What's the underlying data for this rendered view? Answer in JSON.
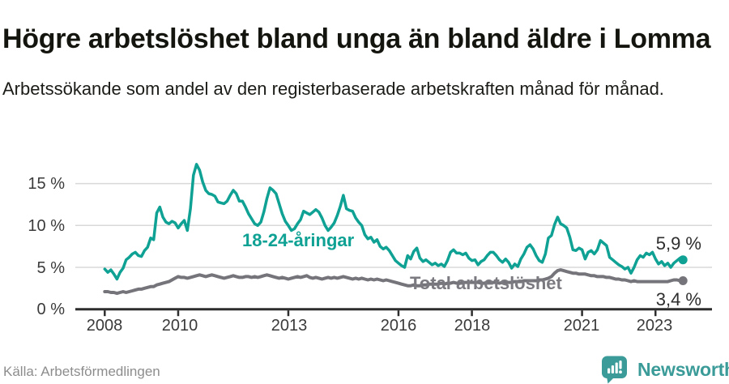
{
  "header": {
    "title": "Högre arbetslöshet bland unga än bland äldre i Lomma",
    "subtitle": "Arbetssökande som andel av den registerbaserade arbetskraften månad för månad."
  },
  "footer": {
    "source": "Källa: Arbetsförmedlingen",
    "brand": "Newsworthy",
    "brand_icon": "newsworthy-speech-bubble-bar-chart-icon"
  },
  "colors": {
    "youth": "#0fa294",
    "total": "#75747a",
    "axis": "#2d2d2d",
    "grid": "#d8d8d8",
    "brand": "#3a9b98",
    "tick_text": "#3a3a3a",
    "value_text": "#2e2e2e"
  },
  "chart_data": {
    "type": "line",
    "title": "Högre arbetslöshet bland unga än bland äldre i Lomma",
    "subtitle": "Arbetssökande som andel av den registerbaserade arbetskraften månad för månad.",
    "xlabel": "",
    "ylabel": "",
    "x_unit": "year+month (monthly data, Jan 2008 – Oct 2023)",
    "y_unit": "percent",
    "x_start": 2008.0,
    "x_step_months": 1,
    "xlim": [
      2007.2,
      2024.55
    ],
    "ylim": [
      0,
      18.5
    ],
    "grid": "horizontal",
    "legend_position": "inline-labels",
    "x_ticks": [
      2008,
      2010,
      2013,
      2016,
      2018,
      2021,
      2023
    ],
    "x_tick_labels": [
      "2008",
      "2010",
      "2013",
      "2016",
      "2018",
      "2021",
      "2023"
    ],
    "y_ticks": [
      0,
      5,
      10,
      15
    ],
    "y_tick_labels": [
      "0 %",
      "5 %",
      "10 %",
      "15 %"
    ],
    "series": [
      {
        "name": "18-24-åringar",
        "color": "#0fa294",
        "stroke_width": 3.5,
        "end_label": "5,9 %",
        "end_value": 5.9,
        "values": [
          4.8,
          4.4,
          4.7,
          4.2,
          3.6,
          4.4,
          4.9,
          5.9,
          6.2,
          6.6,
          6.8,
          6.4,
          6.3,
          7.0,
          7.4,
          8.5,
          8.3,
          11.5,
          12.2,
          11.0,
          10.4,
          10.2,
          10.5,
          10.3,
          9.7,
          10.2,
          10.6,
          9.4,
          12.0,
          16.0,
          17.3,
          16.6,
          15.2,
          14.2,
          13.8,
          13.7,
          13.5,
          12.8,
          12.7,
          12.6,
          12.9,
          13.6,
          14.2,
          13.8,
          12.9,
          12.9,
          12.2,
          11.4,
          10.8,
          10.2,
          10.0,
          10.4,
          11.6,
          13.2,
          14.5,
          14.2,
          13.8,
          12.6,
          11.4,
          10.5,
          10.0,
          9.4,
          9.6,
          10.2,
          10.7,
          11.7,
          11.5,
          11.3,
          11.6,
          11.9,
          11.6,
          10.9,
          10.0,
          9.4,
          9.8,
          10.3,
          11.2,
          12.3,
          13.6,
          12.0,
          11.8,
          11.7,
          10.9,
          10.4,
          10.0,
          8.9,
          8.4,
          8.6,
          8.0,
          8.3,
          7.5,
          7.2,
          7.4,
          7.0,
          6.4,
          5.8,
          5.5,
          5.2,
          5.0,
          6.4,
          6.0,
          6.9,
          7.3,
          6.1,
          5.7,
          5.9,
          5.6,
          5.3,
          5.5,
          5.2,
          5.4,
          5.1,
          5.8,
          6.8,
          7.1,
          6.7,
          6.7,
          6.5,
          6.7,
          6.1,
          5.8,
          5.9,
          5.3,
          5.7,
          5.9,
          6.4,
          6.8,
          6.8,
          6.4,
          5.9,
          5.6,
          6.0,
          5.6,
          4.9,
          5.4,
          5.1,
          6.0,
          6.6,
          7.4,
          7.7,
          7.2,
          6.4,
          5.8,
          5.6,
          6.6,
          8.5,
          8.8,
          10.1,
          11.0,
          10.2,
          10.0,
          9.7,
          8.6,
          7.1,
          7.0,
          7.3,
          7.1,
          6.0,
          6.8,
          7.0,
          6.6,
          7.1,
          8.2,
          7.9,
          7.6,
          6.2,
          5.9,
          5.6,
          5.3,
          5.1,
          4.8,
          5.0,
          4.3,
          5.0,
          5.9,
          6.4,
          6.2,
          6.7,
          6.5,
          6.8,
          6.0,
          5.4,
          5.7,
          5.2,
          5.5,
          5.0,
          5.5,
          5.8,
          6.1,
          5.9
        ]
      },
      {
        "name": "Total arbetslöshet",
        "color": "#75747a",
        "stroke_width": 4,
        "end_label": "3,4 %",
        "end_value": 3.4,
        "values": [
          2.1,
          2.1,
          2.0,
          2.0,
          1.9,
          2.0,
          2.1,
          2.0,
          2.1,
          2.2,
          2.3,
          2.4,
          2.4,
          2.5,
          2.6,
          2.7,
          2.7,
          2.9,
          3.0,
          3.1,
          3.2,
          3.3,
          3.5,
          3.7,
          3.9,
          3.8,
          3.8,
          3.7,
          3.8,
          3.9,
          4.0,
          4.1,
          4.0,
          3.9,
          4.0,
          4.1,
          4.0,
          3.9,
          3.8,
          3.7,
          3.8,
          3.9,
          4.0,
          3.9,
          3.8,
          3.8,
          3.9,
          3.9,
          3.8,
          3.9,
          3.8,
          3.9,
          4.0,
          4.1,
          4.0,
          3.9,
          3.8,
          3.7,
          3.8,
          3.7,
          3.6,
          3.7,
          3.8,
          3.9,
          3.8,
          3.9,
          4.0,
          3.8,
          3.7,
          3.8,
          3.7,
          3.6,
          3.7,
          3.8,
          3.7,
          3.8,
          3.7,
          3.8,
          3.9,
          3.8,
          3.7,
          3.6,
          3.7,
          3.6,
          3.7,
          3.6,
          3.5,
          3.6,
          3.5,
          3.6,
          3.5,
          3.4,
          3.5,
          3.4,
          3.3,
          3.2,
          3.1,
          3.0,
          2.9,
          2.8,
          2.8,
          2.9,
          2.8,
          2.8,
          2.9,
          2.9,
          3.0,
          3.0,
          3.0,
          3.0,
          3.1,
          3.0,
          3.1,
          3.1,
          3.2,
          3.1,
          3.1,
          3.2,
          3.2,
          3.2,
          3.2,
          3.2,
          3.2,
          3.1,
          3.1,
          3.2,
          3.2,
          3.2,
          3.2,
          3.1,
          3.2,
          3.2,
          3.2,
          3.2,
          3.3,
          3.3,
          3.3,
          3.4,
          3.4,
          3.4,
          3.4,
          3.4,
          3.5,
          3.5,
          3.6,
          3.7,
          3.9,
          4.3,
          4.6,
          4.7,
          4.6,
          4.5,
          4.4,
          4.3,
          4.3,
          4.2,
          4.2,
          4.2,
          4.1,
          4.0,
          4.0,
          3.9,
          3.9,
          3.9,
          3.8,
          3.8,
          3.7,
          3.6,
          3.6,
          3.5,
          3.5,
          3.4,
          3.3,
          3.4,
          3.3,
          3.3,
          3.3,
          3.3,
          3.3,
          3.3,
          3.3,
          3.3,
          3.3,
          3.3,
          3.3,
          3.4,
          3.5,
          3.5,
          3.4,
          3.4
        ]
      }
    ]
  }
}
